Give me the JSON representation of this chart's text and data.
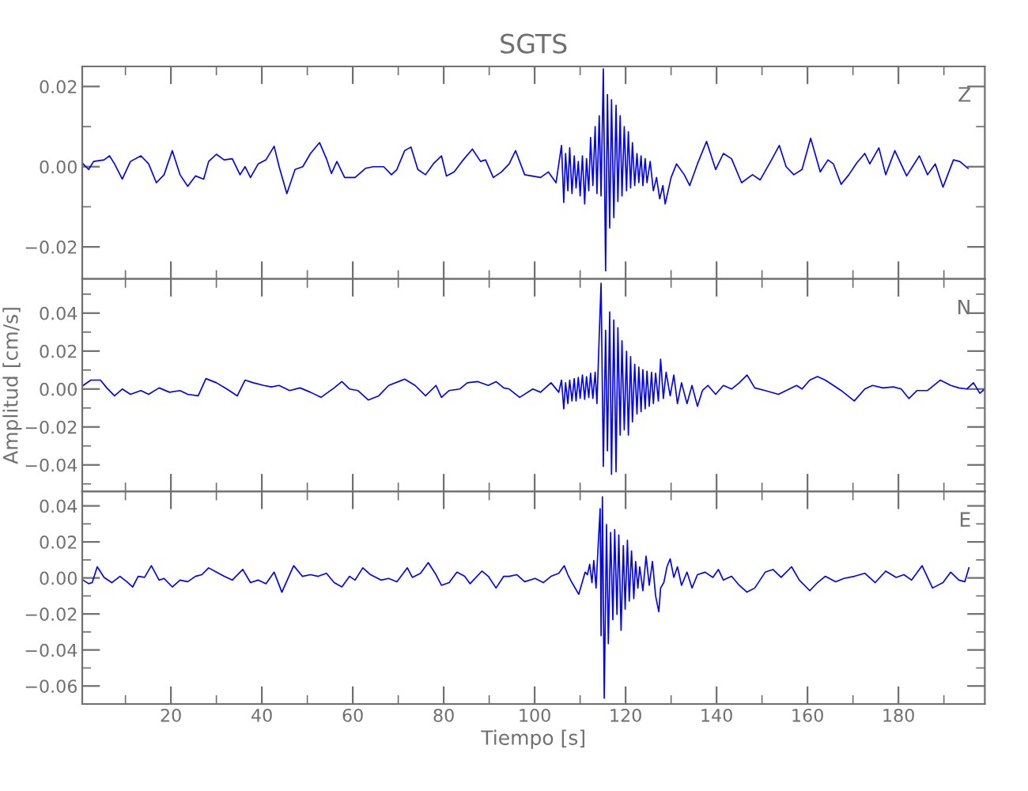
{
  "chart_data": [
    {
      "type": "line",
      "title": "SGTS",
      "annotations": [
        "Z"
      ],
      "tick_labels": "y",
      "grid": false,
      "legend": false,
      "marker": "none",
      "line_style": "solid",
      "xlim": [
        0.5,
        199
      ],
      "xticks": [
        20,
        40,
        60,
        80,
        100,
        120,
        140,
        160,
        180
      ],
      "ylim": [
        -0.028,
        0.025
      ],
      "yticks": [
        {
          "value": 0.02,
          "label": "0.02"
        },
        {
          "value": 0,
          "label": "0.00"
        },
        {
          "value": -0.02,
          "label": "−0.02"
        }
      ],
      "series": [
        {
          "color": "#0000ff",
          "x": [
            0.7,
            1.9,
            3.0,
            5.3,
            6.5,
            7.6,
            9.3,
            11.1,
            13.4,
            15.1,
            16.8,
            18.5,
            20.3,
            22.0,
            23.7,
            25.4,
            27.2,
            28.3,
            30.0,
            31.7,
            33.5,
            35.2,
            36.3,
            37.5,
            39.2,
            40.9,
            42.7,
            43.8,
            45.5,
            47.3,
            49.0,
            50.7,
            52.7,
            54.2,
            55.3,
            56.5,
            58.2,
            60.5,
            62.8,
            64.5,
            66.8,
            68.5,
            69.7,
            71.4,
            72.8,
            74.3,
            76.0,
            77.7,
            79.5,
            80.6,
            82.3,
            84.0,
            86.3,
            88.1,
            89.2,
            90.9,
            92.7,
            94.4,
            95.8,
            97.8,
            101.3,
            103.0,
            104.7,
            105.9,
            106.4,
            106.8,
            107.3,
            107.7,
            108.2,
            108.7,
            109.1,
            109.6,
            110.0,
            110.5,
            111.0,
            111.4,
            111.9,
            112.3,
            112.8,
            113.3,
            113.7,
            114.2,
            114.6,
            115.1,
            115.6,
            116.0,
            116.5,
            116.9,
            117.4,
            117.9,
            118.3,
            118.8,
            119.2,
            119.7,
            120.2,
            120.6,
            121.1,
            121.5,
            122.0,
            122.5,
            122.9,
            123.4,
            123.8,
            124.3,
            124.7,
            125.4,
            126.1,
            126.8,
            127.5,
            128.2,
            128.7,
            130.0,
            131.2,
            132.9,
            134.1,
            135.8,
            137.8,
            139.8,
            141.5,
            143.3,
            145.5,
            147.9,
            149.6,
            151.9,
            153.8,
            155.3,
            157.0,
            158.8,
            160.7,
            162.8,
            164.5,
            165.7,
            167.4,
            169.1,
            170.8,
            172.6,
            173.7,
            175.7,
            177.2,
            179.2,
            181.8,
            184.6,
            186.4,
            188.1,
            189.8,
            192.1,
            193.5,
            195.3
          ],
          "values": [
            0.0007,
            -0.0007,
            0.0013,
            0.0017,
            0.0027,
            0.0007,
            -0.0031,
            0.0013,
            0.0027,
            0.0007,
            -0.004,
            -0.002,
            0.004,
            -0.002,
            -0.0049,
            -0.0023,
            -0.0031,
            0.0013,
            0.0031,
            0.0017,
            0.002,
            -0.002,
            0.0,
            -0.0027,
            0.0007,
            0.0017,
            0.0051,
            0.0,
            -0.0067,
            -0.0007,
            0.0,
            0.0033,
            0.006,
            0.002,
            -0.0017,
            0.0013,
            -0.0027,
            -0.0027,
            -0.0004,
            0.0,
            0.0,
            -0.002,
            -0.0007,
            0.004,
            0.0049,
            -0.0007,
            -0.002,
            0.0007,
            0.0027,
            -0.0023,
            -0.0013,
            0.0013,
            0.0044,
            0.0013,
            0.0017,
            -0.0027,
            -0.0013,
            0.0007,
            0.004,
            -0.002,
            -0.0027,
            -0.0013,
            -0.004,
            0.0053,
            -0.0089,
            0.0033,
            -0.006,
            0.0047,
            -0.0067,
            0.0027,
            -0.0053,
            0.0013,
            -0.0073,
            0.0027,
            -0.0093,
            0.002,
            -0.006,
            0.0073,
            -0.0047,
            0.01,
            -0.0067,
            0.0127,
            -0.0073,
            0.0244,
            -0.026,
            0.018,
            -0.0153,
            0.0167,
            -0.0127,
            0.0153,
            -0.0087,
            0.0127,
            -0.0073,
            0.01,
            -0.006,
            0.0087,
            -0.0053,
            0.006,
            -0.0047,
            0.0033,
            -0.004,
            0.0027,
            -0.0047,
            0.002,
            -0.004,
            0.0013,
            -0.006,
            -0.0027,
            -0.008,
            -0.0047,
            -0.0093,
            -0.0027,
            0.0007,
            -0.002,
            -0.0047,
            0.0007,
            0.0063,
            -0.0007,
            0.0033,
            0.002,
            -0.004,
            -0.002,
            -0.0033,
            0.0013,
            0.0053,
            0.0,
            -0.002,
            -0.0007,
            0.0071,
            -0.0013,
            0.0017,
            0.0007,
            -0.0044,
            -0.002,
            0.0009,
            0.0033,
            0.0007,
            0.0047,
            -0.002,
            0.004,
            -0.0023,
            0.0027,
            -0.002,
            0.0007,
            -0.0051,
            0.0017,
            0.0013,
            -0.0004
          ]
        }
      ]
    },
    {
      "type": "line",
      "ylabel": "Amplitud [cm/s]",
      "annotations": [
        "N"
      ],
      "tick_labels": "y",
      "grid": false,
      "legend": false,
      "marker": "none",
      "line_style": "solid",
      "xlim": [
        0.5,
        199
      ],
      "xticks": [
        20,
        40,
        60,
        80,
        100,
        120,
        140,
        160,
        180
      ],
      "ylim": [
        -0.054,
        0.058
      ],
      "yticks": [
        {
          "value": 0.04,
          "label": "0.04"
        },
        {
          "value": 0.02,
          "label": "0.02"
        },
        {
          "value": 0,
          "label": "0.00"
        },
        {
          "value": -0.02,
          "label": "−0.02"
        },
        {
          "value": -0.04,
          "label": "−0.04"
        }
      ],
      "series": [
        {
          "color": "#0000ff",
          "x": [
            0.7,
            2.4,
            4.5,
            5.9,
            7.6,
            9.3,
            11.1,
            13.4,
            15.1,
            17.4,
            19.7,
            22.0,
            23.7,
            26.0,
            27.7,
            30.0,
            32.3,
            34.6,
            36.3,
            38.1,
            40.4,
            42.1,
            43.8,
            46.1,
            48.4,
            50.7,
            53.0,
            55.9,
            57.6,
            59.3,
            61.1,
            63.4,
            65.7,
            67.9,
            71.4,
            73.7,
            76.0,
            78.3,
            79.5,
            81.2,
            83.5,
            85.2,
            87.5,
            89.8,
            91.5,
            93.2,
            94.4,
            96.7,
            99.6,
            101.3,
            103.6,
            105.3,
            105.9,
            106.4,
            106.8,
            107.3,
            107.7,
            108.2,
            108.7,
            109.1,
            109.6,
            110.0,
            110.5,
            111.0,
            111.4,
            111.9,
            112.3,
            112.8,
            113.3,
            113.7,
            114.2,
            114.6,
            115.1,
            115.6,
            116.0,
            116.5,
            116.9,
            117.4,
            117.9,
            118.3,
            118.8,
            119.2,
            119.7,
            120.2,
            120.6,
            121.1,
            121.5,
            122.0,
            122.5,
            122.9,
            123.4,
            123.8,
            124.3,
            124.7,
            125.2,
            125.7,
            126.1,
            126.6,
            127.2,
            127.7,
            128.3,
            128.9,
            129.8,
            130.6,
            131.4,
            132.3,
            133.5,
            134.6,
            135.8,
            136.9,
            138.1,
            139.8,
            141.5,
            143.3,
            145.0,
            146.7,
            148.4,
            150.7,
            153.6,
            155.3,
            157.6,
            158.8,
            160.5,
            162.2,
            163.9,
            165.7,
            167.4,
            170.3,
            172.6,
            174.3,
            176.6,
            178.9,
            180.6,
            182.3,
            184.1,
            186.4,
            189.2,
            191.5,
            193.3,
            195.0,
            196.5,
            197.9,
            199.0
          ],
          "values": [
            0.0019,
            0.0047,
            0.0047,
            0.0006,
            -0.0036,
            0.0,
            -0.0028,
            -0.0008,
            -0.0028,
            0.0006,
            -0.0017,
            -0.0008,
            -0.0028,
            -0.0036,
            0.0055,
            0.0033,
            0.0,
            -0.0036,
            0.0047,
            0.0033,
            0.0019,
            0.0011,
            0.0019,
            -0.0008,
            0.0006,
            -0.0017,
            -0.0044,
            0.0006,
            0.0039,
            0.0,
            -0.0008,
            -0.0058,
            -0.0036,
            0.0019,
            0.0052,
            0.0019,
            -0.0036,
            0.0019,
            -0.0044,
            -0.0008,
            0.0,
            0.0033,
            0.0039,
            0.0019,
            0.0039,
            0.0006,
            0.0,
            -0.0044,
            0.0,
            -0.0017,
            0.0033,
            -0.0017,
            0.0047,
            -0.0105,
            0.0033,
            -0.0077,
            0.0047,
            -0.0063,
            0.0055,
            -0.0063,
            0.0061,
            -0.005,
            0.0074,
            -0.0055,
            0.0066,
            -0.0044,
            0.0083,
            -0.005,
            0.0088,
            -0.0077,
            0.0281,
            0.0557,
            -0.0408,
            0.0309,
            -0.0326,
            0.0406,
            -0.045,
            0.0364,
            -0.0436,
            0.0323,
            -0.0243,
            0.0254,
            -0.0215,
            0.0199,
            -0.0243,
            0.0171,
            -0.0174,
            0.013,
            -0.0132,
            0.0116,
            -0.0119,
            0.0102,
            -0.0105,
            0.0094,
            -0.0091,
            0.0088,
            -0.0077,
            0.0083,
            -0.0063,
            0.0157,
            -0.005,
            0.0088,
            -0.0036,
            0.0074,
            -0.0077,
            0.0033,
            -0.0077,
            0.0019,
            -0.0091,
            -0.0008,
            0.0019,
            -0.0028,
            0.0019,
            0.0,
            0.0033,
            0.0074,
            0.0006,
            -0.0008,
            -0.0028,
            -0.0008,
            0.0019,
            0.0,
            0.0047,
            0.0066,
            0.0047,
            0.0019,
            -0.0008,
            -0.0063,
            0.0,
            0.0019,
            0.0006,
            0.0011,
            0.0,
            -0.005,
            -0.0008,
            -0.0008,
            0.0047,
            0.0019,
            0.0006,
            0.0,
            0.0033,
            -0.0022,
            0.0
          ]
        }
      ]
    },
    {
      "type": "line",
      "xlabel": "Tiempo [s]",
      "annotations": [
        "E"
      ],
      "grid": false,
      "legend": false,
      "marker": "none",
      "line_style": "solid",
      "xlim": [
        0.5,
        199
      ],
      "xticks": [
        20,
        40,
        60,
        80,
        100,
        120,
        140,
        160,
        180
      ],
      "ylim": [
        -0.07,
        0.048
      ],
      "yticks": [
        {
          "value": 0.04,
          "label": "0.04"
        },
        {
          "value": 0.02,
          "label": "0.02"
        },
        {
          "value": 0,
          "label": "0.00"
        },
        {
          "value": -0.02,
          "label": "−0.02"
        },
        {
          "value": -0.04,
          "label": "−0.04"
        },
        {
          "value": -0.06,
          "label": "−0.06"
        }
      ],
      "series": [
        {
          "color": "#0000ff",
          "x": [
            0.7,
            1.9,
            2.7,
            3.8,
            5.3,
            7.0,
            8.8,
            10.3,
            11.6,
            12.8,
            14.2,
            15.7,
            17.4,
            18.5,
            20.3,
            22.0,
            23.7,
            25.4,
            26.8,
            28.3,
            30.0,
            31.7,
            33.5,
            35.8,
            37.5,
            39.2,
            40.9,
            42.7,
            44.4,
            47.0,
            48.9,
            50.7,
            52.4,
            54.2,
            55.9,
            57.6,
            59.3,
            60.5,
            62.2,
            63.9,
            66.2,
            67.9,
            69.7,
            72.0,
            73.1,
            74.9,
            76.6,
            78.3,
            79.5,
            81.2,
            82.9,
            84.6,
            85.8,
            88.4,
            89.8,
            91.5,
            93.2,
            94.4,
            96.1,
            97.8,
            100.1,
            101.9,
            103.6,
            105.3,
            106.5,
            107.3,
            108.2,
            109.7,
            111.1,
            111.6,
            112.1,
            112.6,
            113.0,
            113.5,
            113.9,
            114.4,
            114.6,
            114.9,
            115.3,
            115.8,
            116.2,
            116.7,
            117.2,
            117.6,
            118.1,
            118.5,
            119.0,
            119.5,
            119.9,
            120.4,
            120.8,
            121.3,
            121.8,
            122.2,
            122.7,
            123.1,
            123.8,
            124.5,
            125.2,
            125.9,
            126.6,
            127.3,
            127.7,
            128.4,
            129.1,
            129.8,
            130.6,
            131.4,
            132.3,
            133.5,
            134.6,
            135.8,
            137.5,
            139.2,
            140.4,
            141.5,
            143.3,
            145.0,
            146.7,
            148.4,
            150.7,
            152.4,
            154.2,
            156.5,
            158.2,
            160.5,
            162.2,
            163.9,
            166.2,
            168.0,
            170.3,
            172.6,
            174.9,
            177.2,
            179.5,
            181.2,
            182.9,
            185.2,
            187.5,
            189.8,
            191.5,
            193.3,
            194.6,
            195.5
          ],
          "values": [
            -0.0012,
            -0.0032,
            -0.0026,
            0.0062,
            0.0003,
            -0.0026,
            0.0009,
            -0.0021,
            -0.005,
            0.0009,
            0.0003,
            0.0068,
            -0.0012,
            -0.0003,
            -0.005,
            -0.0012,
            -0.0021,
            0.0009,
            0.0018,
            0.0056,
            0.0032,
            0.0009,
            -0.0012,
            0.0047,
            -0.0026,
            -0.0012,
            -0.0032,
            0.0032,
            -0.0079,
            0.0068,
            0.0009,
            0.0018,
            0.0009,
            0.0026,
            -0.0026,
            -0.005,
            0.0009,
            -0.0012,
            0.0056,
            0.0018,
            -0.0012,
            -0.0003,
            -0.0021,
            0.0056,
            0.0003,
            0.0026,
            0.0085,
            0.0018,
            -0.0041,
            -0.0026,
            0.0032,
            0.0009,
            -0.0032,
            0.0038,
            0.0009,
            -0.0056,
            0.0009,
            0.0009,
            0.0018,
            -0.0021,
            -0.0003,
            -0.0026,
            0.0009,
            0.0026,
            0.0068,
            0.0018,
            -0.0026,
            -0.0091,
            0.0032,
            0.0018,
            0.0076,
            -0.0026,
            0.0097,
            -0.0056,
            0.015,
            0.0385,
            -0.0321,
            0.045,
            -0.0668,
            0.0297,
            -0.0365,
            0.0253,
            -0.0232,
            0.0268,
            -0.0203,
            0.0238,
            -0.0291,
            0.0179,
            -0.0174,
            0.0209,
            -0.0129,
            0.015,
            -0.0115,
            0.0091,
            -0.0056,
            0.0062,
            -0.0071,
            0.0121,
            -0.0041,
            0.0091,
            -0.01,
            -0.0188,
            -0.0056,
            -0.0026,
            0.0062,
            0.0106,
            0.0003,
            0.0062,
            -0.0041,
            0.0032,
            -0.0056,
            0.0018,
            0.0032,
            0.0003,
            0.0047,
            -0.0012,
            0.0009,
            -0.0041,
            -0.0079,
            -0.0056,
            0.0032,
            0.0047,
            0.0003,
            0.0062,
            -0.0012,
            -0.0071,
            -0.0026,
            0.0009,
            -0.0021,
            -0.0003,
            0.0009,
            0.0026,
            -0.0026,
            0.0038,
            0.0003,
            0.0018,
            -0.0012,
            0.0068,
            -0.0056,
            -0.0026,
            0.0032,
            -0.0012,
            -0.0021,
            0.0056
          ]
        }
      ]
    }
  ]
}
